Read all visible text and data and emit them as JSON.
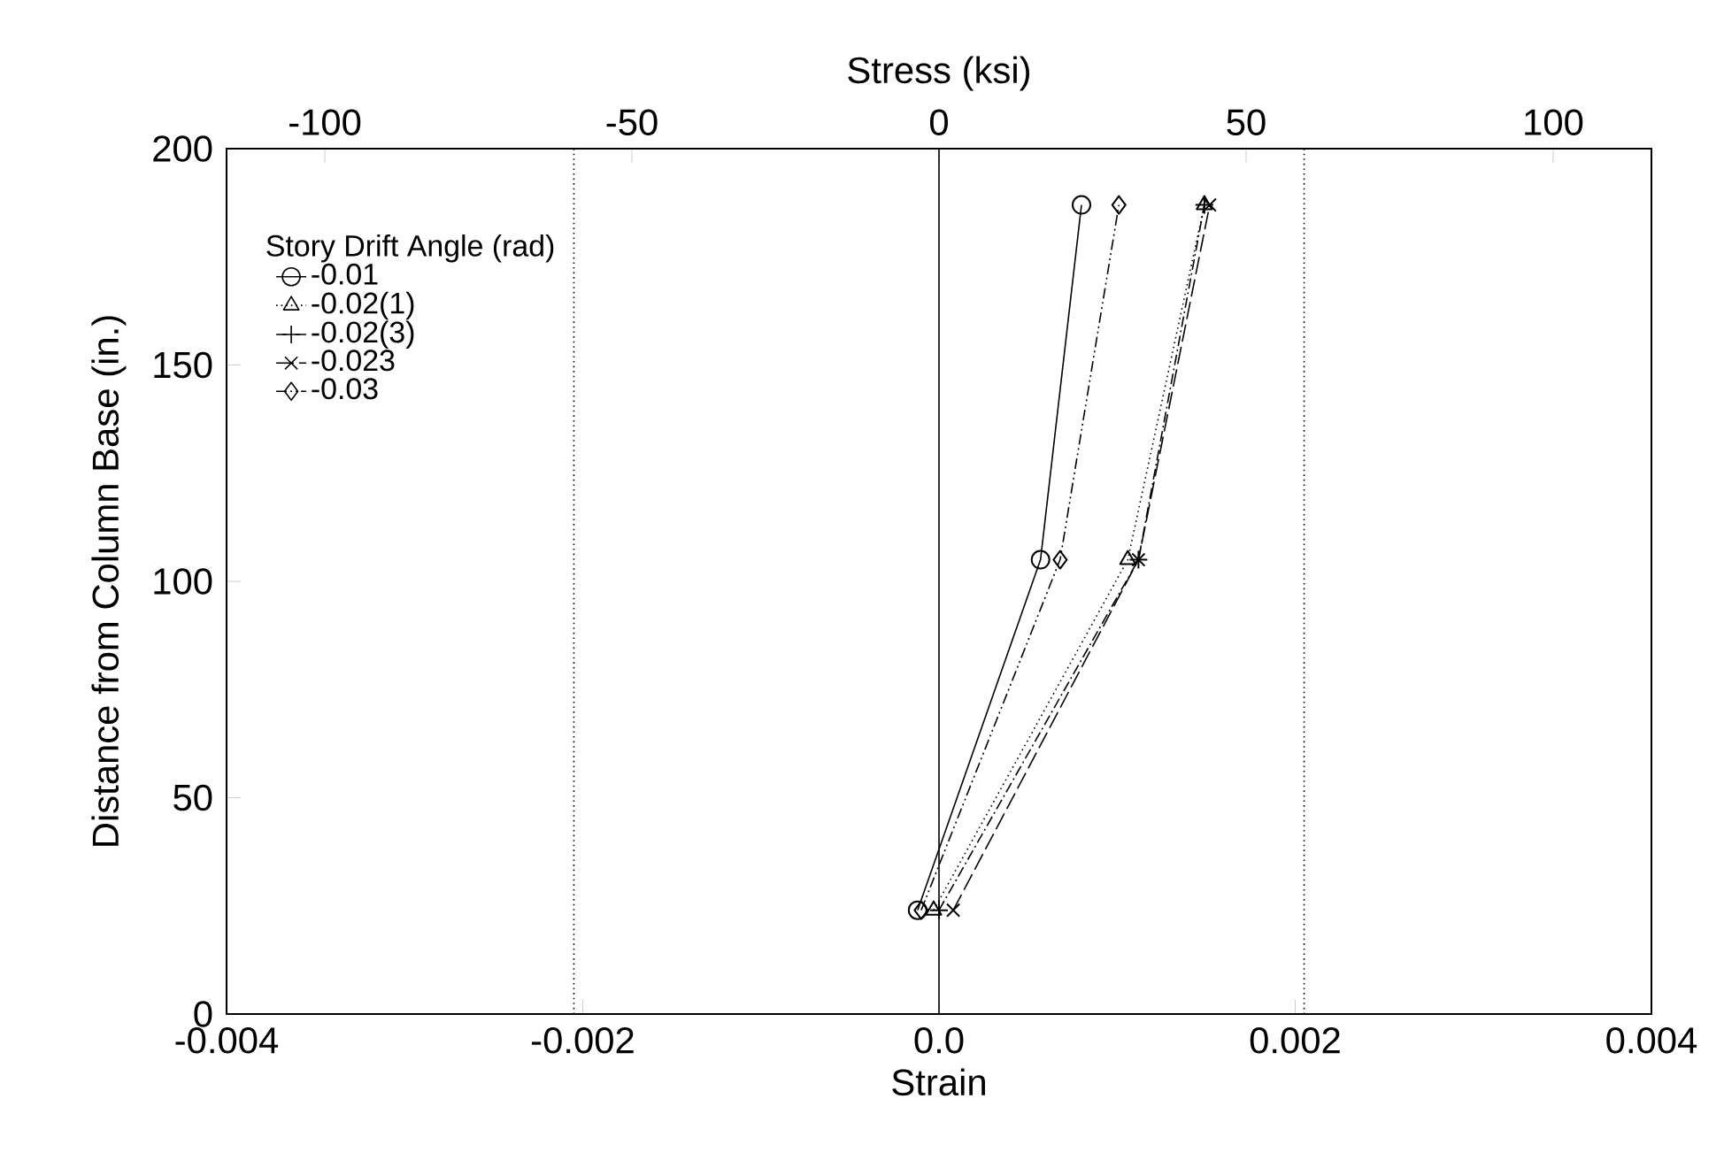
{
  "chart_data": {
    "type": "line",
    "xlabel": "Strain",
    "ylabel": "Distance from Column Base (in.)",
    "x2label": "Stress (ksi)",
    "legend_title": "Story Drift Angle (rad)",
    "xlim": [
      -0.004,
      0.004
    ],
    "xticks": [
      {
        "value": -0.004,
        "label": "-0.004"
      },
      {
        "value": -0.002,
        "label": "-0.002"
      },
      {
        "value": 0,
        "label": "0.0"
      },
      {
        "value": 0.002,
        "label": "0.002"
      },
      {
        "value": 0.004,
        "label": "0.004"
      }
    ],
    "x2lim": [
      -116,
      116
    ],
    "x2ticks": [
      -100,
      -50,
      0,
      50,
      100
    ],
    "ylim": [
      0,
      200
    ],
    "yticks": [
      0,
      50,
      100,
      150,
      200
    ],
    "grid": false,
    "legend": "top left",
    "ref_lines": [
      {
        "axis": "x",
        "value": -0.00205,
        "color": "#000000",
        "line_style": "dotted"
      },
      {
        "axis": "x",
        "value": 0.00205,
        "color": "#000000",
        "line_style": "dotted"
      },
      {
        "axis": "x",
        "value": 0,
        "color": "#000000",
        "line_style": "solid"
      }
    ],
    "series": [
      {
        "name": "-0.01",
        "color": "#000000",
        "marker": "circle",
        "line_style": "solid",
        "x": [
          -0.00012,
          0.00057,
          0.0008
        ],
        "values": [
          24,
          105,
          187
        ]
      },
      {
        "name": "-0.02(1)",
        "color": "#000000",
        "marker": "triangle",
        "line_style": "dotted",
        "x": [
          -3e-05,
          0.00106,
          0.00149
        ],
        "values": [
          24,
          105,
          187
        ]
      },
      {
        "name": "-0.02(3)",
        "color": "#000000",
        "marker": "cross",
        "line_style": "dashdot",
        "x": [
          0,
          0.00112,
          0.00149
        ],
        "values": [
          24,
          105,
          187
        ]
      },
      {
        "name": "-0.023",
        "color": "#000000",
        "marker": "x",
        "line_style": "dashed",
        "x": [
          8e-05,
          0.00112,
          0.00152
        ],
        "values": [
          24,
          105,
          187
        ]
      },
      {
        "name": "-0.03",
        "color": "#000000",
        "marker": "diamond",
        "line_style": "dashdotdot",
        "x": [
          -0.0001,
          0.00068,
          0.00101
        ],
        "values": [
          24,
          105,
          187
        ]
      }
    ]
  }
}
